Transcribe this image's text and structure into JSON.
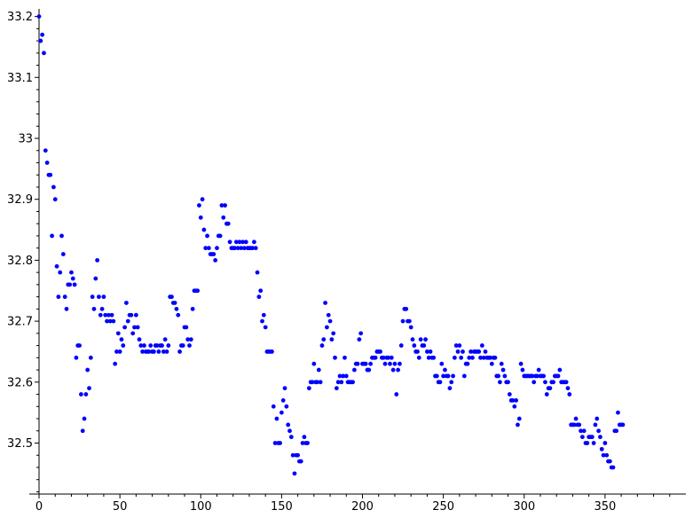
{
  "chart_data": {
    "type": "scatter",
    "title": "",
    "xlabel": "",
    "ylabel": "",
    "xlim": [
      0,
      400
    ],
    "ylim": [
      32.42,
      33.21
    ],
    "grid": false,
    "legend": "none",
    "marker_color": "#0000ff",
    "x_ticks": [
      {
        "value": 0,
        "label": "0"
      },
      {
        "value": 50,
        "label": "50"
      },
      {
        "value": 100,
        "label": "100"
      },
      {
        "value": 150,
        "label": "150"
      },
      {
        "value": 200,
        "label": "200"
      },
      {
        "value": 250,
        "label": "250"
      },
      {
        "value": 300,
        "label": "300"
      },
      {
        "value": 350,
        "label": "350"
      }
    ],
    "y_ticks": [
      {
        "value": 32.5,
        "label": "32.5"
      },
      {
        "value": 32.6,
        "label": "32.6"
      },
      {
        "value": 32.7,
        "label": "32.7"
      },
      {
        "value": 32.8,
        "label": "32.8"
      },
      {
        "value": 32.9,
        "label": "32.9"
      },
      {
        "value": 33.0,
        "label": "33"
      },
      {
        "value": 33.1,
        "label": "33.1"
      },
      {
        "value": 33.2,
        "label": "33.2"
      }
    ],
    "x_minor_step": 10,
    "y_minor_step": 0.02,
    "points": [
      [
        0,
        33.2
      ],
      [
        1,
        33.16
      ],
      [
        2,
        33.17
      ],
      [
        3,
        33.14
      ],
      [
        4,
        32.98
      ],
      [
        5,
        32.96
      ],
      [
        6,
        32.94
      ],
      [
        7,
        32.94
      ],
      [
        8,
        32.84
      ],
      [
        9,
        32.92
      ],
      [
        10,
        32.9
      ],
      [
        11,
        32.79
      ],
      [
        12,
        32.74
      ],
      [
        13,
        32.78
      ],
      [
        14,
        32.84
      ],
      [
        15,
        32.81
      ],
      [
        16,
        32.74
      ],
      [
        17,
        32.72
      ],
      [
        18,
        32.76
      ],
      [
        19,
        32.76
      ],
      [
        20,
        32.78
      ],
      [
        21,
        32.77
      ],
      [
        22,
        32.76
      ],
      [
        23,
        32.64
      ],
      [
        24,
        32.66
      ],
      [
        25,
        32.66
      ],
      [
        26,
        32.58
      ],
      [
        27,
        32.52
      ],
      [
        28,
        32.54
      ],
      [
        29,
        32.58
      ],
      [
        30,
        32.62
      ],
      [
        31,
        32.59
      ],
      [
        32,
        32.64
      ],
      [
        33,
        32.74
      ],
      [
        34,
        32.72
      ],
      [
        35,
        32.77
      ],
      [
        36,
        32.8
      ],
      [
        37,
        32.74
      ],
      [
        38,
        32.71
      ],
      [
        39,
        32.72
      ],
      [
        40,
        32.74
      ],
      [
        41,
        32.71
      ],
      [
        42,
        32.7
      ],
      [
        43,
        32.71
      ],
      [
        44,
        32.7
      ],
      [
        45,
        32.71
      ],
      [
        46,
        32.7
      ],
      [
        47,
        32.63
      ],
      [
        48,
        32.65
      ],
      [
        49,
        32.68
      ],
      [
        50,
        32.65
      ],
      [
        51,
        32.67
      ],
      [
        52,
        32.66
      ],
      [
        53,
        32.69
      ],
      [
        54,
        32.73
      ],
      [
        55,
        32.7
      ],
      [
        56,
        32.71
      ],
      [
        57,
        32.71
      ],
      [
        58,
        32.68
      ],
      [
        59,
        32.69
      ],
      [
        60,
        32.71
      ],
      [
        61,
        32.69
      ],
      [
        62,
        32.67
      ],
      [
        63,
        32.66
      ],
      [
        64,
        32.65
      ],
      [
        65,
        32.66
      ],
      [
        66,
        32.65
      ],
      [
        67,
        32.65
      ],
      [
        68,
        32.65
      ],
      [
        69,
        32.66
      ],
      [
        70,
        32.65
      ],
      [
        71,
        32.65
      ],
      [
        72,
        32.66
      ],
      [
        73,
        32.66
      ],
      [
        74,
        32.65
      ],
      [
        75,
        32.66
      ],
      [
        76,
        32.66
      ],
      [
        77,
        32.65
      ],
      [
        78,
        32.67
      ],
      [
        79,
        32.65
      ],
      [
        80,
        32.66
      ],
      [
        81,
        32.74
      ],
      [
        82,
        32.74
      ],
      [
        83,
        32.73
      ],
      [
        84,
        32.73
      ],
      [
        85,
        32.72
      ],
      [
        86,
        32.71
      ],
      [
        87,
        32.65
      ],
      [
        88,
        32.66
      ],
      [
        89,
        32.66
      ],
      [
        90,
        32.69
      ],
      [
        91,
        32.69
      ],
      [
        92,
        32.67
      ],
      [
        93,
        32.66
      ],
      [
        94,
        32.67
      ],
      [
        95,
        32.72
      ],
      [
        96,
        32.75
      ],
      [
        97,
        32.75
      ],
      [
        98,
        32.75
      ],
      [
        99,
        32.89
      ],
      [
        100,
        32.87
      ],
      [
        101,
        32.9
      ],
      [
        102,
        32.85
      ],
      [
        103,
        32.82
      ],
      [
        104,
        32.84
      ],
      [
        105,
        32.82
      ],
      [
        106,
        32.81
      ],
      [
        107,
        32.81
      ],
      [
        108,
        32.81
      ],
      [
        109,
        32.8
      ],
      [
        110,
        32.82
      ],
      [
        111,
        32.84
      ],
      [
        112,
        32.84
      ],
      [
        113,
        32.89
      ],
      [
        114,
        32.87
      ],
      [
        115,
        32.89
      ],
      [
        116,
        32.86
      ],
      [
        117,
        32.86
      ],
      [
        118,
        32.83
      ],
      [
        119,
        32.82
      ],
      [
        120,
        32.82
      ],
      [
        121,
        32.82
      ],
      [
        122,
        32.83
      ],
      [
        123,
        32.82
      ],
      [
        124,
        32.83
      ],
      [
        125,
        32.82
      ],
      [
        126,
        32.83
      ],
      [
        127,
        32.82
      ],
      [
        128,
        32.83
      ],
      [
        129,
        32.82
      ],
      [
        130,
        32.82
      ],
      [
        131,
        32.82
      ],
      [
        132,
        32.82
      ],
      [
        133,
        32.83
      ],
      [
        134,
        32.82
      ],
      [
        135,
        32.78
      ],
      [
        136,
        32.74
      ],
      [
        137,
        32.75
      ],
      [
        138,
        32.7
      ],
      [
        139,
        32.71
      ],
      [
        140,
        32.69
      ],
      [
        141,
        32.65
      ],
      [
        142,
        32.65
      ],
      [
        143,
        32.65
      ],
      [
        144,
        32.65
      ],
      [
        145,
        32.56
      ],
      [
        146,
        32.5
      ],
      [
        147,
        32.54
      ],
      [
        148,
        32.5
      ],
      [
        149,
        32.5
      ],
      [
        150,
        32.55
      ],
      [
        151,
        32.57
      ],
      [
        152,
        32.59
      ],
      [
        153,
        32.56
      ],
      [
        154,
        32.53
      ],
      [
        155,
        32.52
      ],
      [
        156,
        32.51
      ],
      [
        157,
        32.48
      ],
      [
        158,
        32.45
      ],
      [
        159,
        32.48
      ],
      [
        160,
        32.48
      ],
      [
        161,
        32.47
      ],
      [
        162,
        32.47
      ],
      [
        163,
        32.5
      ],
      [
        164,
        32.51
      ],
      [
        165,
        32.5
      ],
      [
        166,
        32.5
      ],
      [
        167,
        32.59
      ],
      [
        168,
        32.6
      ],
      [
        169,
        32.6
      ],
      [
        170,
        32.63
      ],
      [
        171,
        32.6
      ],
      [
        172,
        32.6
      ],
      [
        173,
        32.62
      ],
      [
        174,
        32.6
      ],
      [
        175,
        32.66
      ],
      [
        176,
        32.67
      ],
      [
        177,
        32.73
      ],
      [
        178,
        32.69
      ],
      [
        179,
        32.71
      ],
      [
        180,
        32.7
      ],
      [
        181,
        32.67
      ],
      [
        182,
        32.68
      ],
      [
        183,
        32.64
      ],
      [
        184,
        32.59
      ],
      [
        185,
        32.6
      ],
      [
        186,
        32.61
      ],
      [
        187,
        32.6
      ],
      [
        188,
        32.61
      ],
      [
        189,
        32.64
      ],
      [
        190,
        32.61
      ],
      [
        191,
        32.6
      ],
      [
        192,
        32.6
      ],
      [
        193,
        32.6
      ],
      [
        194,
        32.6
      ],
      [
        195,
        32.62
      ],
      [
        196,
        32.63
      ],
      [
        197,
        32.63
      ],
      [
        198,
        32.67
      ],
      [
        199,
        32.68
      ],
      [
        200,
        32.63
      ],
      [
        201,
        32.63
      ],
      [
        202,
        32.63
      ],
      [
        203,
        32.62
      ],
      [
        204,
        32.62
      ],
      [
        205,
        32.63
      ],
      [
        206,
        32.64
      ],
      [
        207,
        32.64
      ],
      [
        208,
        32.64
      ],
      [
        209,
        32.65
      ],
      [
        210,
        32.65
      ],
      [
        211,
        32.65
      ],
      [
        212,
        32.64
      ],
      [
        213,
        32.64
      ],
      [
        214,
        32.63
      ],
      [
        215,
        32.64
      ],
      [
        216,
        32.64
      ],
      [
        217,
        32.63
      ],
      [
        218,
        32.64
      ],
      [
        219,
        32.62
      ],
      [
        220,
        32.63
      ],
      [
        221,
        32.58
      ],
      [
        222,
        32.62
      ],
      [
        223,
        32.63
      ],
      [
        224,
        32.66
      ],
      [
        225,
        32.7
      ],
      [
        226,
        32.72
      ],
      [
        227,
        32.72
      ],
      [
        228,
        32.7
      ],
      [
        229,
        32.7
      ],
      [
        230,
        32.69
      ],
      [
        231,
        32.67
      ],
      [
        232,
        32.66
      ],
      [
        233,
        32.65
      ],
      [
        234,
        32.65
      ],
      [
        235,
        32.64
      ],
      [
        236,
        32.67
      ],
      [
        237,
        32.66
      ],
      [
        238,
        32.66
      ],
      [
        239,
        32.67
      ],
      [
        240,
        32.65
      ],
      [
        241,
        32.64
      ],
      [
        242,
        32.65
      ],
      [
        243,
        32.64
      ],
      [
        244,
        32.64
      ],
      [
        245,
        32.61
      ],
      [
        246,
        32.61
      ],
      [
        247,
        32.6
      ],
      [
        248,
        32.6
      ],
      [
        249,
        32.63
      ],
      [
        250,
        32.61
      ],
      [
        251,
        32.62
      ],
      [
        252,
        32.61
      ],
      [
        253,
        32.61
      ],
      [
        254,
        32.59
      ],
      [
        255,
        32.6
      ],
      [
        256,
        32.61
      ],
      [
        257,
        32.64
      ],
      [
        258,
        32.66
      ],
      [
        259,
        32.65
      ],
      [
        260,
        32.66
      ],
      [
        261,
        32.64
      ],
      [
        262,
        32.65
      ],
      [
        263,
        32.61
      ],
      [
        264,
        32.63
      ],
      [
        265,
        32.63
      ],
      [
        266,
        32.64
      ],
      [
        267,
        32.65
      ],
      [
        268,
        32.64
      ],
      [
        269,
        32.65
      ],
      [
        270,
        32.65
      ],
      [
        271,
        32.65
      ],
      [
        272,
        32.65
      ],
      [
        273,
        32.64
      ],
      [
        274,
        32.66
      ],
      [
        275,
        32.64
      ],
      [
        276,
        32.65
      ],
      [
        277,
        32.64
      ],
      [
        278,
        32.64
      ],
      [
        279,
        32.64
      ],
      [
        280,
        32.63
      ],
      [
        281,
        32.64
      ],
      [
        282,
        32.64
      ],
      [
        283,
        32.61
      ],
      [
        284,
        32.61
      ],
      [
        285,
        32.6
      ],
      [
        286,
        32.63
      ],
      [
        287,
        32.62
      ],
      [
        288,
        32.61
      ],
      [
        289,
        32.6
      ],
      [
        290,
        32.6
      ],
      [
        291,
        32.58
      ],
      [
        292,
        32.57
      ],
      [
        293,
        32.57
      ],
      [
        294,
        32.56
      ],
      [
        295,
        32.57
      ],
      [
        296,
        32.53
      ],
      [
        297,
        32.54
      ],
      [
        298,
        32.63
      ],
      [
        299,
        32.62
      ],
      [
        300,
        32.61
      ],
      [
        301,
        32.61
      ],
      [
        302,
        32.61
      ],
      [
        303,
        32.61
      ],
      [
        304,
        32.61
      ],
      [
        305,
        32.61
      ],
      [
        306,
        32.6
      ],
      [
        307,
        32.61
      ],
      [
        308,
        32.61
      ],
      [
        309,
        32.62
      ],
      [
        310,
        32.61
      ],
      [
        311,
        32.61
      ],
      [
        312,
        32.61
      ],
      [
        313,
        32.6
      ],
      [
        314,
        32.58
      ],
      [
        315,
        32.59
      ],
      [
        316,
        32.59
      ],
      [
        317,
        32.6
      ],
      [
        318,
        32.6
      ],
      [
        319,
        32.61
      ],
      [
        320,
        32.61
      ],
      [
        321,
        32.61
      ],
      [
        322,
        32.62
      ],
      [
        323,
        32.6
      ],
      [
        324,
        32.6
      ],
      [
        325,
        32.6
      ],
      [
        326,
        32.6
      ],
      [
        327,
        32.59
      ],
      [
        328,
        32.58
      ],
      [
        329,
        32.53
      ],
      [
        330,
        32.53
      ],
      [
        331,
        32.53
      ],
      [
        332,
        32.54
      ],
      [
        333,
        32.53
      ],
      [
        334,
        32.53
      ],
      [
        335,
        32.52
      ],
      [
        336,
        32.51
      ],
      [
        337,
        32.52
      ],
      [
        338,
        32.5
      ],
      [
        339,
        32.5
      ],
      [
        340,
        32.51
      ],
      [
        341,
        32.51
      ],
      [
        342,
        32.51
      ],
      [
        343,
        32.5
      ],
      [
        344,
        32.53
      ],
      [
        345,
        32.54
      ],
      [
        346,
        32.52
      ],
      [
        347,
        32.51
      ],
      [
        348,
        32.49
      ],
      [
        349,
        32.48
      ],
      [
        350,
        32.5
      ],
      [
        351,
        32.48
      ],
      [
        352,
        32.47
      ],
      [
        353,
        32.47
      ],
      [
        354,
        32.46
      ],
      [
        355,
        32.46
      ],
      [
        356,
        32.52
      ],
      [
        357,
        32.52
      ],
      [
        358,
        32.55
      ],
      [
        359,
        32.53
      ],
      [
        360,
        32.53
      ],
      [
        361,
        32.53
      ]
    ]
  }
}
